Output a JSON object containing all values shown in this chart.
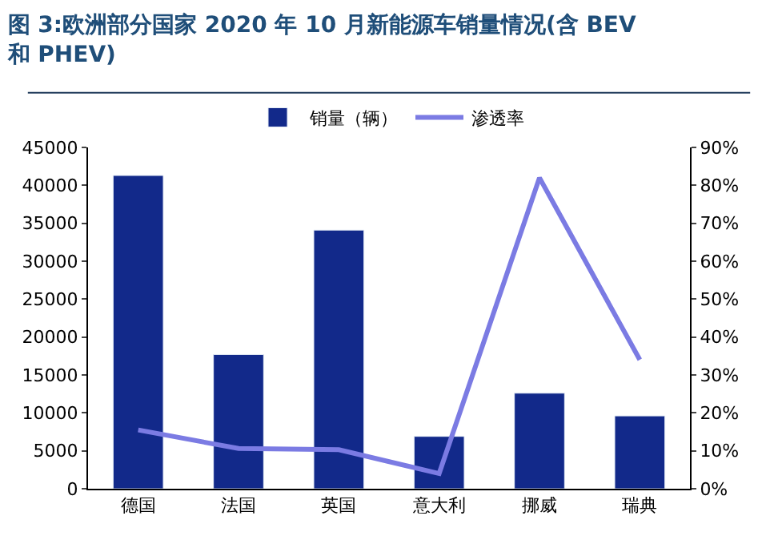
{
  "chart_data": {
    "type": "bar",
    "title": "图 3:欧洲部分国家 2020 年 10 月新能源车销量情况(含 BEV\n和 PHEV)",
    "categories": [
      "德国",
      "法国",
      "英国",
      "意大利",
      "挪威",
      "瑞典"
    ],
    "series": [
      {
        "name": "销量（辆）",
        "color": "#12298a",
        "values": [
          41300,
          17700,
          34100,
          6900,
          12600,
          9600
        ]
      },
      {
        "name": "渗透率",
        "type": "line",
        "axis": "y2",
        "color": "#7b7be3",
        "values": [
          15.5,
          10.6,
          10.3,
          4,
          82,
          34
        ]
      }
    ],
    "ylim": [
      0,
      45000
    ],
    "yticks": [
      0,
      5000,
      10000,
      15000,
      20000,
      25000,
      30000,
      35000,
      40000,
      45000
    ],
    "y2lim": [
      0,
      90
    ],
    "y2ticks": [
      {
        "value": 0,
        "label": "0%"
      },
      {
        "value": 10,
        "label": "10%"
      },
      {
        "value": 20,
        "label": "20%"
      },
      {
        "value": 30,
        "label": "30%"
      },
      {
        "value": 40,
        "label": "40%"
      },
      {
        "value": 50,
        "label": "50%"
      },
      {
        "value": 60,
        "label": "60%"
      },
      {
        "value": 70,
        "label": "70%"
      },
      {
        "value": 80,
        "label": "80%"
      },
      {
        "value": 90,
        "label": "90%"
      }
    ],
    "legend": "top",
    "marker": "none",
    "line_style": "solid"
  }
}
